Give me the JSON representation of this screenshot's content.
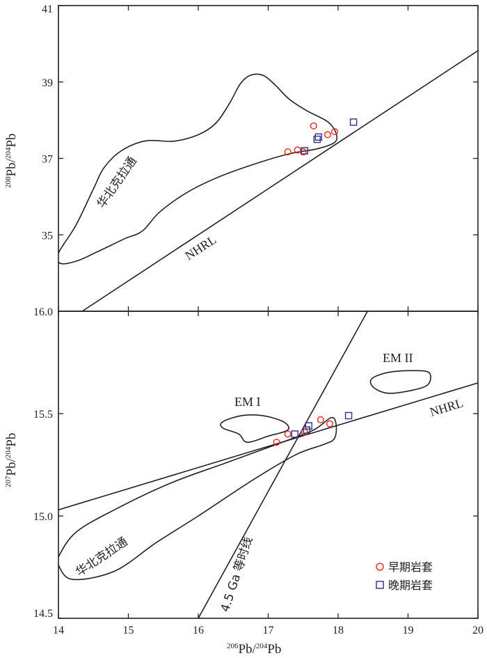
{
  "chart_data": [
    {
      "type": "scatter",
      "panel": "top",
      "xlim": [
        14,
        20
      ],
      "ylim": [
        33,
        41
      ],
      "y_ticks": [
        35,
        37,
        39,
        41
      ],
      "y_tick_labels": [
        "35",
        "37",
        "39",
        "41"
      ],
      "bottom_tick_label": "16.0",
      "ylabel_parts": [
        "208",
        "Pb/",
        "204",
        "Pb"
      ],
      "grid": false,
      "annotations": {
        "field_label": "华北克拉通",
        "line_label": "NHRL"
      },
      "reference_lines": [
        {
          "name": "NHRL",
          "points": [
            [
              14.34,
              33.0
            ],
            [
              20.0,
              39.82
            ]
          ]
        }
      ],
      "fields": [
        {
          "name": "华北克拉通",
          "outline": [
            [
              14.27,
              34.32
            ],
            [
              14.55,
              34.55
            ],
            [
              14.95,
              34.9
            ],
            [
              15.2,
              35.1
            ],
            [
              15.45,
              35.6
            ],
            [
              15.85,
              36.12
            ],
            [
              16.3,
              36.52
            ],
            [
              16.8,
              36.85
            ],
            [
              17.3,
              37.12
            ],
            [
              17.7,
              37.25
            ],
            [
              17.95,
              37.42
            ],
            [
              17.97,
              37.66
            ],
            [
              17.85,
              37.96
            ],
            [
              17.55,
              38.25
            ],
            [
              17.3,
              38.55
            ],
            [
              17.1,
              38.92
            ],
            [
              16.93,
              39.17
            ],
            [
              16.75,
              39.18
            ],
            [
              16.6,
              38.95
            ],
            [
              16.45,
              38.45
            ],
            [
              16.25,
              37.92
            ],
            [
              16.0,
              37.62
            ],
            [
              15.65,
              37.45
            ],
            [
              15.25,
              37.46
            ],
            [
              14.9,
              37.2
            ],
            [
              14.65,
              36.75
            ],
            [
              14.5,
              36.2
            ],
            [
              14.25,
              35.25
            ],
            [
              14.0,
              34.52
            ],
            [
              14.03,
              34.25
            ],
            [
              14.27,
              34.32
            ]
          ]
        }
      ],
      "series": [
        {
          "name": "早期岩套",
          "color": "#e8332a",
          "marker": "circle",
          "points": [
            [
              17.28,
              37.17
            ],
            [
              17.42,
              37.22
            ],
            [
              17.5,
              37.17
            ],
            [
              17.65,
              37.85
            ],
            [
              17.85,
              37.62
            ],
            [
              17.95,
              37.7
            ]
          ]
        },
        {
          "name": "晚期岩套",
          "color": "#3b3a8c",
          "marker": "square",
          "points": [
            [
              17.52,
              37.2
            ],
            [
              17.7,
              37.5
            ],
            [
              17.72,
              37.56
            ],
            [
              18.22,
              37.95
            ]
          ]
        }
      ]
    },
    {
      "type": "scatter",
      "panel": "bottom",
      "xlim": [
        14,
        20
      ],
      "ylim": [
        14.5,
        16.0
      ],
      "x_ticks": [
        14,
        15,
        16,
        17,
        18,
        19,
        20
      ],
      "x_tick_labels": [
        "14",
        "15",
        "16",
        "17",
        "18",
        "19",
        "20"
      ],
      "y_ticks": [
        14.5,
        15.0,
        15.5
      ],
      "y_tick_labels": [
        "14.5",
        "15.0",
        "15.5"
      ],
      "xlabel_parts": [
        "206",
        "Pb/",
        "204",
        "Pb"
      ],
      "ylabel_parts": [
        "207",
        "Pb/",
        "204",
        "Pb"
      ],
      "grid": false,
      "annotations": {
        "field_label": "华北克拉通",
        "line_label": "NHRL",
        "em1_label": "EM I",
        "em2_label": "EM II",
        "geochron_label": "4.5 Ga 等时线"
      },
      "reference_lines": [
        {
          "name": "NHRL",
          "points": [
            [
              14.0,
              15.03
            ],
            [
              20.0,
              15.65
            ]
          ]
        },
        {
          "name": "4.5 Ga 等时线",
          "points": [
            [
              16.0,
              14.5
            ],
            [
              18.42,
              16.0
            ]
          ]
        }
      ],
      "fields": [
        {
          "name": "华北克拉通",
          "outline": [
            [
              14.0,
              14.8
            ],
            [
              14.25,
              14.92
            ],
            [
              14.8,
              15.03
            ],
            [
              15.6,
              15.16
            ],
            [
              16.4,
              15.26
            ],
            [
              17.2,
              15.36
            ],
            [
              17.65,
              15.42
            ],
            [
              17.9,
              15.48
            ],
            [
              17.97,
              15.45
            ],
            [
              17.95,
              15.38
            ],
            [
              17.8,
              15.35
            ],
            [
              17.4,
              15.3
            ],
            [
              16.8,
              15.18
            ],
            [
              16.0,
              15.0
            ],
            [
              15.4,
              14.87
            ],
            [
              14.8,
              14.73
            ],
            [
              14.2,
              14.69
            ],
            [
              14.0,
              14.76
            ],
            [
              14.0,
              14.8
            ]
          ]
        },
        {
          "name": "EM I",
          "outline": [
            [
              16.35,
              15.46
            ],
            [
              16.62,
              15.49
            ],
            [
              16.92,
              15.49
            ],
            [
              17.22,
              15.46
            ],
            [
              17.28,
              15.42
            ],
            [
              17.0,
              15.39
            ],
            [
              16.7,
              15.36
            ],
            [
              16.58,
              15.4
            ],
            [
              16.35,
              15.43
            ],
            [
              16.35,
              15.46
            ]
          ]
        },
        {
          "name": "EM II",
          "outline": [
            [
              18.48,
              15.67
            ],
            [
              18.7,
              15.7
            ],
            [
              19.05,
              15.71
            ],
            [
              19.3,
              15.7
            ],
            [
              19.28,
              15.64
            ],
            [
              19.0,
              15.61
            ],
            [
              18.7,
              15.6
            ],
            [
              18.5,
              15.63
            ],
            [
              18.48,
              15.67
            ]
          ]
        }
      ],
      "series": [
        {
          "name": "早期岩套",
          "color": "#e8332a",
          "marker": "circle",
          "points": [
            [
              17.12,
              15.36
            ],
            [
              17.28,
              15.4
            ],
            [
              17.52,
              15.41
            ],
            [
              17.75,
              15.47
            ],
            [
              17.88,
              15.45
            ]
          ]
        },
        {
          "name": "晚期岩套",
          "color": "#3b3a8c",
          "marker": "square",
          "points": [
            [
              17.38,
              15.4
            ],
            [
              17.55,
              15.42
            ],
            [
              17.58,
              15.44
            ],
            [
              18.15,
              15.49
            ]
          ]
        }
      ],
      "legend": {
        "placement": "bottom-right",
        "entries": [
          {
            "label": "早期岩套",
            "marker": "circle",
            "color": "#e8332a"
          },
          {
            "label": "晚期岩套",
            "marker": "square",
            "color": "#3b3a8c"
          }
        ]
      }
    }
  ]
}
